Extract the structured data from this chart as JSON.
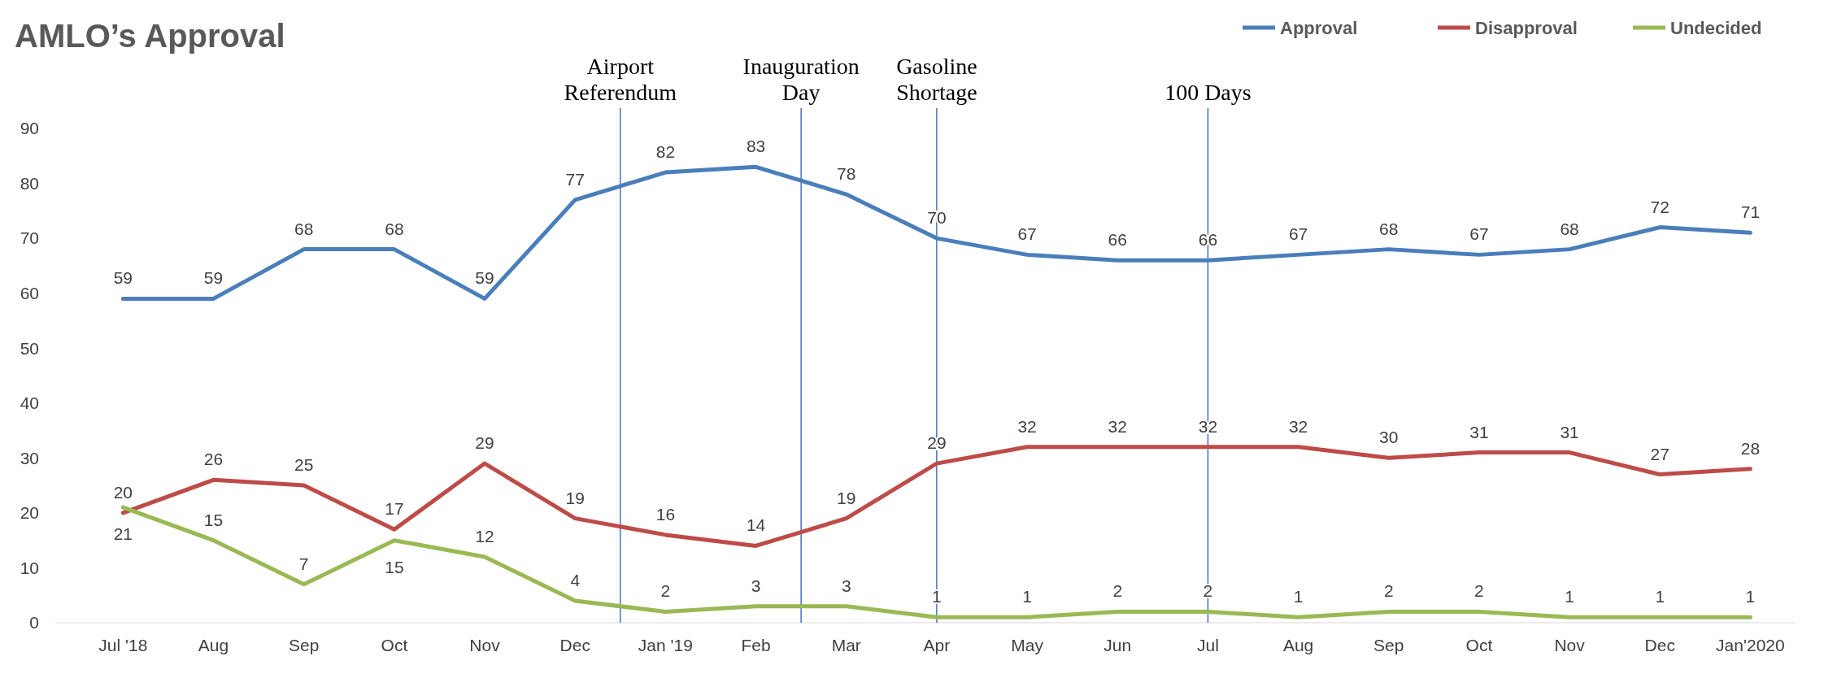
{
  "chart_data": {
    "type": "line",
    "title": "AMLO’s Approval",
    "categories": [
      "Jul '18",
      "Aug",
      "Sep",
      "Oct",
      "Nov",
      "Dec",
      "Jan '19",
      "Feb",
      "Mar",
      "Apr",
      "May",
      "Jun",
      "Jul",
      "Aug",
      "Sep",
      "Oct",
      "Nov",
      "Dec",
      "Jan'2020"
    ],
    "series": [
      {
        "name": "Approval",
        "color": "#4a7ebb",
        "values": [
          59,
          59,
          68,
          68,
          59,
          77,
          82,
          83,
          78,
          70,
          67,
          66,
          66,
          67,
          68,
          67,
          68,
          72,
          71
        ]
      },
      {
        "name": "Disapproval",
        "color": "#be4b48",
        "values": [
          20,
          26,
          25,
          17,
          29,
          19,
          16,
          14,
          19,
          29,
          32,
          32,
          32,
          32,
          30,
          31,
          31,
          27,
          28
        ]
      },
      {
        "name": "Undecided",
        "color": "#98b954",
        "values": [
          21,
          15,
          7,
          15,
          12,
          4,
          2,
          3,
          3,
          1,
          1,
          2,
          2,
          1,
          2,
          2,
          1,
          1,
          1
        ]
      }
    ],
    "ylim": [
      0,
      90
    ],
    "yticks": [
      0,
      10,
      20,
      30,
      40,
      50,
      60,
      70,
      80,
      90
    ],
    "ref_lines": [
      {
        "axis": "x",
        "value": "Apr",
        "label": "Gasoline\nShortage",
        "color": "#4472c4"
      },
      {
        "axis": "x",
        "value": "Jul",
        "label": "100 Days",
        "color": "#4472c4"
      }
    ],
    "annotations": [
      "Airport\nReferendum",
      "Inauguration\nDay"
    ],
    "data_labels": true,
    "legend": "top right",
    "grid": false,
    "marker": "none",
    "line_style": "solid"
  }
}
